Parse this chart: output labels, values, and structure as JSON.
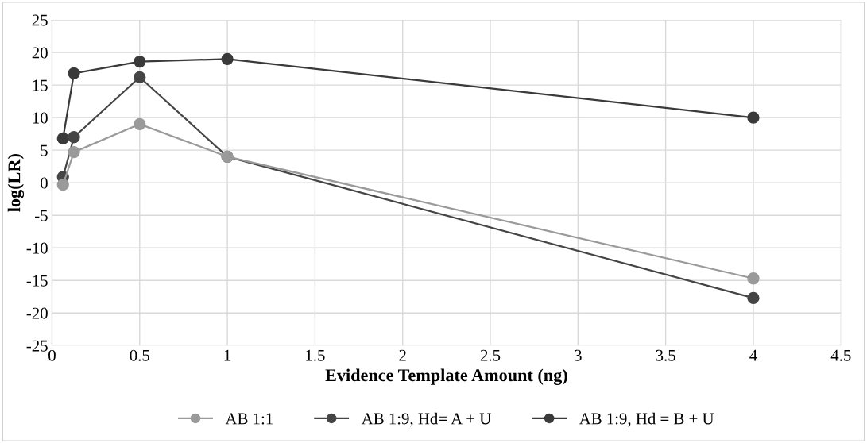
{
  "chart_data": {
    "type": "line",
    "xlabel": "Evidence Template Amount (ng)",
    "ylabel": "log(LR)",
    "x": [
      0.0625,
      0.125,
      0.5,
      1,
      4
    ],
    "series": [
      {
        "name": "AB 1:1",
        "color": "#9a9a9a",
        "values": [
          -0.3,
          4.7,
          9,
          4,
          -14.7
        ]
      },
      {
        "name": "AB 1:9, Hd= A + U",
        "color": "#454545",
        "values": [
          0.9,
          7,
          16.2,
          4,
          -17.7
        ]
      },
      {
        "name": "AB 1:9, Hd = B + U",
        "color": "#3a3a3a",
        "values": [
          6.8,
          16.8,
          18.6,
          19,
          10
        ]
      }
    ],
    "xlim": [
      0,
      4.5
    ],
    "xticks": [
      0,
      0.5,
      1,
      1.5,
      2,
      2.5,
      3,
      3.5,
      4,
      4.5
    ],
    "ylim": [
      -25,
      25
    ],
    "yticks": [
      -25,
      -20,
      -15,
      -10,
      -5,
      0,
      5,
      10,
      15,
      20,
      25
    ],
    "grid": true,
    "legend": "bottom",
    "marker": "circle",
    "line_style": "solid"
  }
}
